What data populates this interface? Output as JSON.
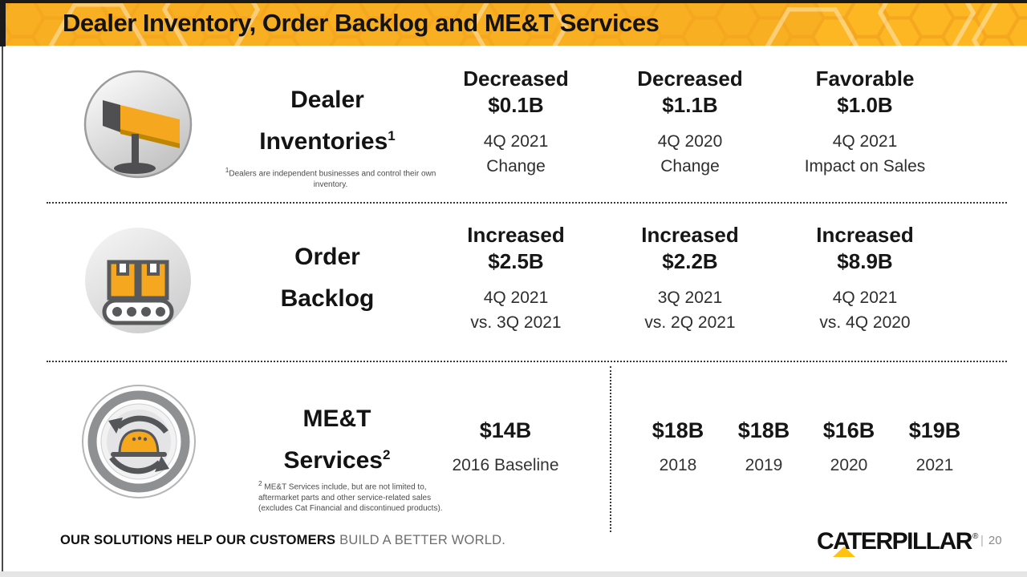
{
  "banner": {
    "title": "Dealer Inventory, Order Backlog and ME&T Services",
    "bg_color": "#F5A81F",
    "hex_bright": "#FFBE25",
    "hex_outline": "rgba(255,255,255,0.38)"
  },
  "rows": [
    {
      "icon": "dealer-sign-icon",
      "title_line1": "Dealer",
      "title_line2": "Inventories",
      "title_sup": "1",
      "footnote_sup": "1",
      "footnote": "Dealers are independent businesses and control their own inventory.",
      "cols": [
        {
          "action": "Decreased",
          "amount": "$0.1B",
          "period_line1": "4Q 2021",
          "period_line2": "Change"
        },
        {
          "action": "Decreased",
          "amount": "$1.1B",
          "period_line1": "4Q 2020",
          "period_line2": "Change"
        },
        {
          "action": "Favorable",
          "amount": "$1.0B",
          "period_line1": "4Q 2021",
          "period_line2": "Impact on Sales"
        }
      ]
    },
    {
      "icon": "order-backlog-icon",
      "title_line1": "Order",
      "title_line2": "Backlog",
      "title_sup": "",
      "cols": [
        {
          "action": "Increased",
          "amount": "$2.5B",
          "period_line1": "4Q 2021",
          "period_line2": "vs. 3Q 2021"
        },
        {
          "action": "Increased",
          "amount": "$2.2B",
          "period_line1": "3Q 2021",
          "period_line2": "vs. 2Q 2021"
        },
        {
          "action": "Increased",
          "amount": "$8.9B",
          "period_line1": "4Q 2021",
          "period_line2": "vs. 4Q 2020"
        }
      ]
    },
    {
      "icon": "met-services-icon",
      "title_line1": "ME&T",
      "title_line2": "Services",
      "title_sup": "2",
      "footnote_sup": "2",
      "footnote": "ME&T  Services include, but are not limited to, aftermarket parts and other service-related sales (excludes Cat Financial and discontinued products)."
    }
  ],
  "met_values": {
    "baseline": {
      "amount": "$14B",
      "label": "2016 Baseline"
    },
    "years": [
      {
        "amount": "$18B",
        "label": "2018"
      },
      {
        "amount": "$18B",
        "label": "2019"
      },
      {
        "amount": "$16B",
        "label": "2020"
      },
      {
        "amount": "$19B",
        "label": "2021"
      }
    ]
  },
  "footer": {
    "tagline_bold": "OUR SOLUTIONS HELP OUR CUSTOMERS",
    "tagline_light": "BUILD A BETTER WORLD.",
    "logo_text": "CATERPILLAR",
    "logo_reg": "®",
    "logo_triangle_color": "#FFC20E",
    "page_divider": "|",
    "page_number": "20"
  }
}
